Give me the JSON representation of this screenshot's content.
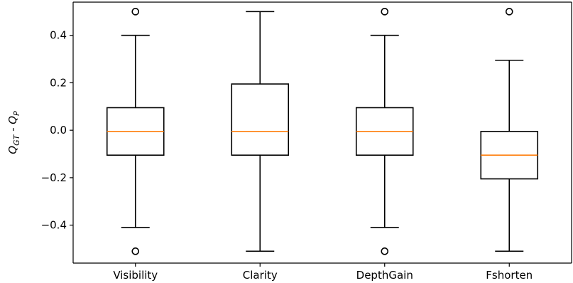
{
  "chart_data": {
    "type": "boxplot",
    "title": "",
    "xlabel": "",
    "ylabel": {
      "base1": "Q",
      "sub1": "GT",
      "sep": " - ",
      "base2": "Q",
      "sub2": "P"
    },
    "categories": [
      "Visibility",
      "Clarity",
      "DepthGain",
      "Fshorten"
    ],
    "ylim": [
      -0.56,
      0.54
    ],
    "yticks": [
      -0.4,
      -0.2,
      0.0,
      0.2,
      0.4
    ],
    "ytick_labels": [
      "−0.4",
      "−0.2",
      "0.0",
      "0.2",
      "0.4"
    ],
    "grid": false,
    "legend": "none",
    "boxes": [
      {
        "category": "Visibility",
        "whisker_low": -0.41,
        "q1": -0.105,
        "median": -0.005,
        "q3": 0.095,
        "whisker_high": 0.4,
        "fliers": [
          0.5,
          -0.51
        ]
      },
      {
        "category": "Clarity",
        "whisker_low": -0.51,
        "q1": -0.105,
        "median": -0.005,
        "q3": 0.195,
        "whisker_high": 0.5,
        "fliers": []
      },
      {
        "category": "DepthGain",
        "whisker_low": -0.41,
        "q1": -0.105,
        "median": -0.005,
        "q3": 0.095,
        "whisker_high": 0.4,
        "fliers": [
          0.5,
          -0.51
        ]
      },
      {
        "category": "Fshorten",
        "whisker_low": -0.51,
        "q1": -0.205,
        "median": -0.105,
        "q3": -0.005,
        "whisker_high": 0.295,
        "fliers": [
          0.5
        ]
      }
    ],
    "colors": {
      "median": "#ff7f0e",
      "box": "#000000",
      "axis": "#000000"
    }
  }
}
